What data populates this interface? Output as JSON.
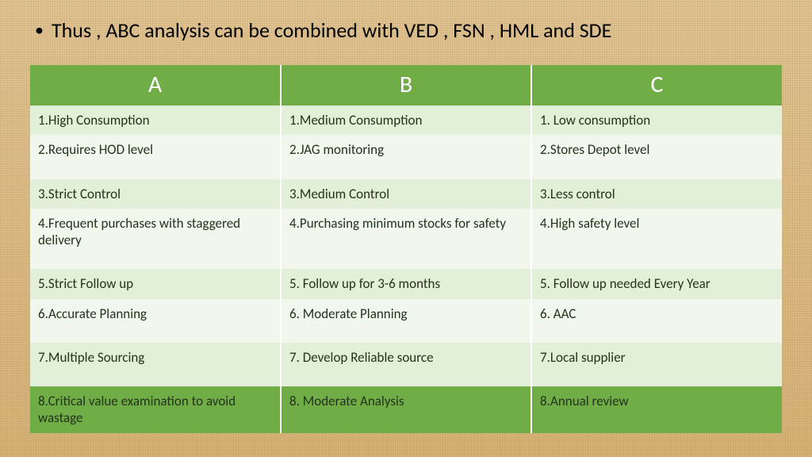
{
  "bullet_text": "Thus , ABC analysis can be combined with VED , FSN , HML and SDE",
  "table": {
    "type": "table",
    "columns": [
      "A",
      "B",
      "C"
    ],
    "header_bg": "#70ad47",
    "header_text_color": "#ffffff",
    "row_band_light": "#e2efd9",
    "row_band_lighter": "#f1f7ed",
    "last_row_bg": "#70ad47",
    "cell_text_color": "#24331b",
    "column_sep_color": "#ffffff",
    "header_fontsize": 30,
    "cell_fontsize": 17,
    "rows": [
      [
        "1.High Consumption",
        "1.Medium Consumption",
        "1. Low consumption"
      ],
      [
        "2.Requires HOD level",
        "2.JAG monitoring",
        "2.Stores Depot level"
      ],
      [
        "3.Strict Control",
        "3.Medium Control",
        "3.Less control"
      ],
      [
        "4.Frequent purchases with staggered delivery",
        "4.Purchasing minimum stocks for safety",
        "4.High safety level"
      ],
      [
        "5.Strict Follow up",
        "5. Follow up for 3-6 months",
        "5. Follow up needed Every Year"
      ],
      [
        "6.Accurate Planning",
        "6. Moderate Planning",
        "6. AAC"
      ],
      [
        "7.Multiple Sourcing",
        "7. Develop Reliable source",
        "7.Local supplier"
      ],
      [
        "8.Critical value examination to avoid wastage",
        "8. Moderate Analysis",
        "8.Annual review"
      ]
    ],
    "tall_rows": [
      1,
      3,
      5,
      6
    ]
  },
  "background_color": "#d9b98a"
}
